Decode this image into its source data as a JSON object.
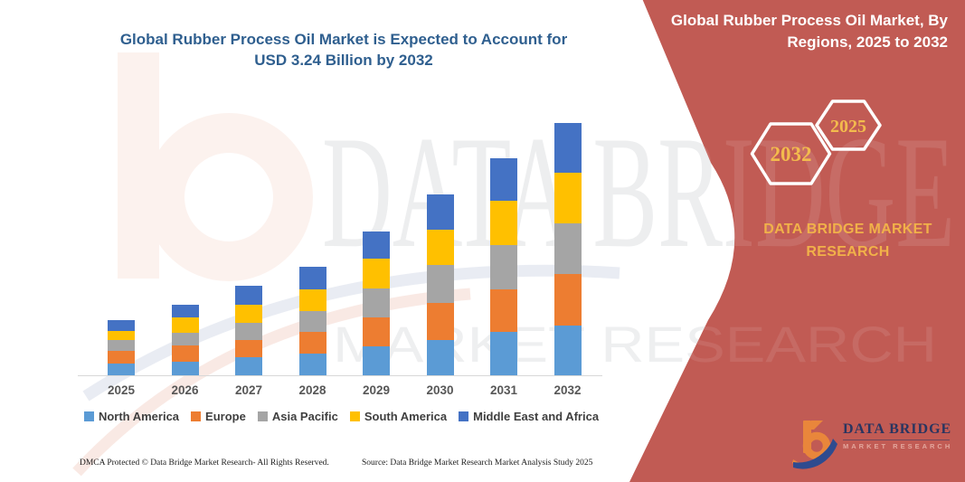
{
  "page": {
    "main_title_line1": "Global Rubber Process Oil Market is Expected to Account for",
    "main_title_line2": "USD 3.24 Billion by 2032",
    "footer_left": "DMCA Protected © Data Bridge Market Research-  All Rights Reserved.",
    "footer_source": "Source: Data Bridge Market Research  Market Analysis Study 2025"
  },
  "side_panel": {
    "title_line1": "Global Rubber Process Oil Market, By",
    "title_line2": "Regions, 2025 to 2032",
    "hexagon_left_year": "2032",
    "hexagon_right_year": "2025",
    "brand_line1": "DATA BRIDGE MARKET",
    "brand_line2": "RESEARCH",
    "background_color": "#C15B54",
    "accent_text_color": "#F1B149"
  },
  "watermark": {
    "line1": "DATA BRIDGE",
    "line2": "MARKET RESEARCH"
  },
  "logo": {
    "name_text": "DATA BRIDGE",
    "subtitle_text": "MARKET RESEARCH"
  },
  "chart_data": {
    "type": "bar",
    "stacked": true,
    "title": "Global Rubber Process Oil Market is Expected to Account for USD 3.24 Billion by 2032",
    "unit": "USD Billion",
    "categories": [
      "2025",
      "2026",
      "2027",
      "2028",
      "2029",
      "2030",
      "2031",
      "2032"
    ],
    "series": [
      {
        "name": "North America",
        "color": "#5B9BD5",
        "values": [
          0.15,
          0.18,
          0.23,
          0.28,
          0.37,
          0.45,
          0.56,
          0.64
        ]
      },
      {
        "name": "Europe",
        "color": "#ED7D31",
        "values": [
          0.16,
          0.2,
          0.22,
          0.28,
          0.38,
          0.48,
          0.55,
          0.66
        ]
      },
      {
        "name": "Asia Pacific",
        "color": "#A5A5A5",
        "values": [
          0.14,
          0.17,
          0.23,
          0.27,
          0.37,
          0.49,
          0.56,
          0.65
        ]
      },
      {
        "name": "South America",
        "color": "#FFC000",
        "values": [
          0.12,
          0.2,
          0.23,
          0.27,
          0.38,
          0.45,
          0.57,
          0.65
        ]
      },
      {
        "name": "Middle East and Africa",
        "color": "#4472C4",
        "values": [
          0.14,
          0.16,
          0.24,
          0.3,
          0.35,
          0.46,
          0.55,
          0.64
        ]
      }
    ],
    "totals_estimated": [
      0.71,
      0.91,
      1.15,
      1.4,
      1.85,
      2.33,
      2.79,
      3.24
    ],
    "stated_total_2032": "USD 3.24 Billion",
    "xlabel": "",
    "ylabel": "",
    "y_axis_visible": false,
    "gridlines": false,
    "legend_position": "bottom"
  }
}
